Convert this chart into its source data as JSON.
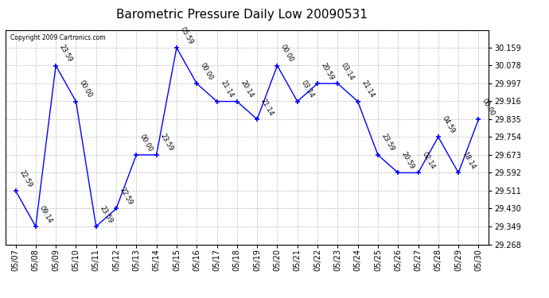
{
  "title": "Barometric Pressure Daily Low 20090531",
  "copyright": "Copyright 2009 Cartronics.com",
  "x_labels": [
    "05/07",
    "05/08",
    "05/09",
    "05/10",
    "05/11",
    "05/12",
    "05/13",
    "05/14",
    "05/15",
    "05/16",
    "05/17",
    "05/18",
    "05/19",
    "05/20",
    "05/21",
    "05/22",
    "05/23",
    "05/24",
    "05/25",
    "05/26",
    "05/27",
    "05/28",
    "05/29",
    "05/30"
  ],
  "y_values": [
    29.511,
    29.349,
    30.077,
    29.915,
    29.349,
    29.43,
    29.673,
    29.673,
    30.158,
    29.996,
    29.915,
    29.915,
    29.834,
    30.077,
    29.915,
    29.996,
    29.996,
    29.915,
    29.673,
    29.592,
    29.592,
    29.754,
    29.592,
    29.834
  ],
  "point_labels": [
    "22:59",
    "09:14",
    "23:59",
    "00:00",
    "23:59",
    "22:59",
    "00:00",
    "23:59",
    "05:59",
    "00:00",
    "21:14",
    "20:14",
    "21:14",
    "00:00",
    "03:14",
    "20:59",
    "03:14",
    "21:14",
    "23:59",
    "20:59",
    "02:14",
    "04:59",
    "18:14",
    "00:00"
  ],
  "ylim_min": 29.268,
  "ylim_max": 30.239,
  "ytick_step": 0.081,
  "line_color": "blue",
  "marker_color": "blue",
  "bg_color": "#ffffff",
  "grid_color": "#bbbbbb",
  "title_fontsize": 11,
  "label_fontsize": 7,
  "point_label_fontsize": 6
}
